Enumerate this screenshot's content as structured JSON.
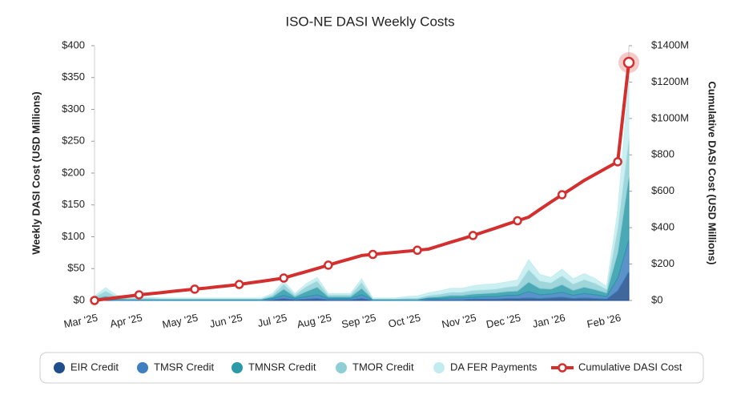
{
  "chart_data": {
    "type": "area",
    "title": "ISO-NE DASI Weekly Costs",
    "y_label": "Weekly DASI Cost (USD Millions)",
    "y2_label": "Cumulative DASI Cost (USD Millions)",
    "categories": [
      "Mar '25",
      null,
      null,
      null,
      "Apr '25",
      null,
      null,
      null,
      null,
      "May '25",
      null,
      null,
      null,
      "Jun '25",
      null,
      null,
      null,
      "Jul '25",
      null,
      null,
      null,
      "Aug '25",
      null,
      null,
      null,
      "Sep '25",
      null,
      null,
      null,
      "Oct '25",
      null,
      null,
      null,
      null,
      "Nov '25",
      null,
      null,
      null,
      "Dec '25",
      null,
      null,
      null,
      "Jan '26",
      null,
      null,
      null,
      null,
      "Feb '26",
      null
    ],
    "ylim": [
      0,
      400
    ],
    "yticks": [
      {
        "value": 0,
        "label": "$0"
      },
      {
        "value": 50,
        "label": "$50"
      },
      {
        "value": 100,
        "label": "$100"
      },
      {
        "value": 150,
        "label": "$150"
      },
      {
        "value": 200,
        "label": "$200"
      },
      {
        "value": 250,
        "label": "$250"
      },
      {
        "value": 300,
        "label": "$300"
      },
      {
        "value": 350,
        "label": "$350"
      },
      {
        "value": 400,
        "label": "$400"
      }
    ],
    "y2lim": [
      0,
      1400
    ],
    "y2ticks": [
      {
        "value": 0,
        "label": "$0"
      },
      {
        "value": 200,
        "label": "$200"
      },
      {
        "value": 400,
        "label": "$400"
      },
      {
        "value": 600,
        "label": "$600"
      },
      {
        "value": 800,
        "label": "$800"
      },
      {
        "value": 1000,
        "label": "$1000M"
      },
      {
        "value": 1200,
        "label": "$1200M"
      },
      {
        "value": 1400,
        "label": "$1400M"
      }
    ],
    "stacked": true,
    "series": [
      {
        "name": "EIR Credit",
        "color": "#1f4e8c",
        "values": [
          0,
          1,
          0,
          0,
          0,
          0,
          0,
          0,
          0,
          0,
          0,
          0,
          0,
          0,
          0,
          0,
          1,
          3,
          1,
          2,
          3,
          1,
          1,
          1,
          3,
          0,
          0,
          0,
          0,
          0,
          1,
          1,
          1,
          1,
          2,
          2,
          2,
          3,
          3,
          4,
          3,
          4,
          5,
          3,
          4,
          3,
          2,
          15,
          45
        ]
      },
      {
        "name": "TMSR Credit",
        "color": "#3d7fbf",
        "values": [
          1,
          2,
          1,
          1,
          1,
          1,
          1,
          1,
          1,
          1,
          1,
          1,
          1,
          1,
          1,
          1,
          2,
          5,
          2,
          4,
          6,
          2,
          2,
          2,
          6,
          1,
          1,
          1,
          1,
          1,
          2,
          2,
          3,
          3,
          3,
          4,
          4,
          5,
          5,
          10,
          6,
          6,
          8,
          5,
          7,
          6,
          4,
          20,
          50
        ]
      },
      {
        "name": "TMNSR Credit",
        "color": "#2a9aa8",
        "values": [
          2,
          4,
          2,
          1,
          1,
          1,
          1,
          1,
          1,
          1,
          1,
          1,
          1,
          1,
          1,
          1,
          3,
          10,
          3,
          8,
          12,
          3,
          3,
          3,
          10,
          1,
          1,
          1,
          1,
          1,
          2,
          3,
          4,
          4,
          5,
          5,
          6,
          6,
          7,
          15,
          10,
          8,
          12,
          8,
          10,
          8,
          6,
          40,
          100
        ]
      },
      {
        "name": "TMOR Credit",
        "color": "#8ecfd6",
        "values": [
          3,
          8,
          3,
          2,
          2,
          2,
          1,
          1,
          1,
          1,
          1,
          1,
          1,
          1,
          1,
          1,
          3,
          8,
          3,
          8,
          10,
          3,
          3,
          3,
          10,
          1,
          1,
          1,
          2,
          2,
          3,
          4,
          5,
          5,
          6,
          6,
          6,
          7,
          8,
          20,
          12,
          10,
          14,
          10,
          12,
          10,
          6,
          40,
          60
        ]
      },
      {
        "name": "DA FER Payments",
        "color": "#c3ecf0",
        "values": [
          1,
          5,
          2,
          1,
          1,
          1,
          1,
          1,
          1,
          1,
          1,
          1,
          1,
          1,
          1,
          1,
          2,
          4,
          2,
          4,
          5,
          2,
          2,
          2,
          5,
          1,
          1,
          1,
          2,
          3,
          4,
          5,
          6,
          6,
          7,
          8,
          8,
          8,
          9,
          15,
          10,
          8,
          10,
          8,
          9,
          7,
          4,
          25,
          90
        ]
      },
      {
        "name": "Cumulative DASI Cost",
        "color": "#d32f2f",
        "type": "line",
        "axis": "y2",
        "values": [
          0,
          8,
          16,
          23,
          31,
          37,
          43,
          50,
          56,
          62,
          68,
          75,
          81,
          88,
          97,
          105,
          114,
          123,
          141,
          158,
          176,
          194,
          212,
          229,
          247,
          253,
          259,
          264,
          270,
          276,
          282,
          301,
          320,
          338,
          357,
          377,
          397,
          418,
          438,
          458,
          500,
          541,
          581,
          620,
          660,
          694,
          728,
          762,
          1307
        ]
      }
    ]
  }
}
